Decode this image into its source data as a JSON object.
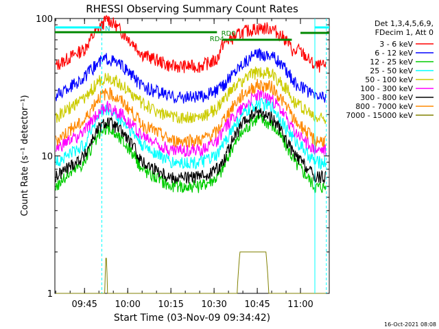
{
  "chart_data": {
    "type": "line",
    "title": "RHESSI Observing Summary Count Rates",
    "xlabel": "Start Time (03-Nov-09 09:34:42)",
    "ylabel": "Count Rate (s⁻¹ detector⁻¹)",
    "y_scale": "log",
    "ylim": [
      1,
      100
    ],
    "y_ticks": [
      {
        "value": 1,
        "label": "1"
      },
      {
        "value": 10,
        "label": "10"
      },
      {
        "value": 100,
        "label": "100"
      }
    ],
    "x_start": "09:34:42",
    "x_end": "11:10",
    "x_ticks": [
      "09:45",
      "10:00",
      "10:15",
      "10:30",
      "10:45",
      "11:00"
    ],
    "grid": false,
    "legend_position": "top-right",
    "legend_header": [
      "Det 1,3,4,5,6,9,",
      "FDecim 1, Att 0"
    ],
    "annotations": {
      "night_markers": [
        "09:51",
        "11:09"
      ],
      "saa_markers": [
        "11:05"
      ],
      "labels": [
        {
          "text": "N",
          "time": "09:53"
        },
        {
          "text": "RD4",
          "time": "10:31"
        },
        {
          "text": "RD0",
          "time": "10:35"
        }
      ]
    },
    "timestamp": "16-Oct-2021 08:08",
    "series": [
      {
        "name": "3 - 6 keV",
        "color": "#ff0000",
        "points": [
          [
            "09:35",
            45
          ],
          [
            "09:45",
            60
          ],
          [
            "09:50",
            85
          ],
          [
            "09:53",
            100
          ],
          [
            "09:58",
            80
          ],
          [
            "10:05",
            55
          ],
          [
            "10:15",
            45
          ],
          [
            "10:25",
            45
          ],
          [
            "10:31",
            50
          ],
          [
            "10:33",
            65
          ],
          [
            "10:40",
            80
          ],
          [
            "10:45",
            85
          ],
          [
            "10:50",
            85
          ],
          [
            "10:55",
            70
          ],
          [
            "10:58",
            55
          ],
          [
            "10:59",
            60
          ],
          [
            "11:05",
            45
          ],
          [
            "11:09",
            45
          ]
        ]
      },
      {
        "name": "6 - 12 keV",
        "color": "#0000ff",
        "points": [
          [
            "09:35",
            27
          ],
          [
            "09:45",
            37
          ],
          [
            "09:50",
            48
          ],
          [
            "09:53",
            52
          ],
          [
            "09:58",
            45
          ],
          [
            "10:05",
            32
          ],
          [
            "10:15",
            27
          ],
          [
            "10:25",
            27
          ],
          [
            "10:31",
            30
          ],
          [
            "10:33",
            32
          ],
          [
            "10:40",
            48
          ],
          [
            "10:45",
            55
          ],
          [
            "10:50",
            55
          ],
          [
            "10:55",
            42
          ],
          [
            "10:58",
            34
          ],
          [
            "11:05",
            27
          ],
          [
            "11:09",
            27
          ]
        ]
      },
      {
        "name": "12 - 25 keV",
        "color": "#00cc00",
        "points": [
          [
            "09:35",
            6
          ],
          [
            "09:45",
            9
          ],
          [
            "09:50",
            14
          ],
          [
            "09:53",
            16
          ],
          [
            "09:58",
            13
          ],
          [
            "10:05",
            8
          ],
          [
            "10:15",
            6
          ],
          [
            "10:25",
            6
          ],
          [
            "10:31",
            7
          ],
          [
            "10:33",
            8
          ],
          [
            "10:40",
            15
          ],
          [
            "10:45",
            19
          ],
          [
            "10:50",
            17
          ],
          [
            "10:55",
            12
          ],
          [
            "10:58",
            9
          ],
          [
            "11:05",
            6
          ],
          [
            "11:09",
            6
          ]
        ]
      },
      {
        "name": "25 - 50 keV",
        "color": "#00ffff",
        "points": [
          [
            "09:35",
            9
          ],
          [
            "09:45",
            12
          ],
          [
            "09:50",
            20
          ],
          [
            "09:53",
            22
          ],
          [
            "09:58",
            18
          ],
          [
            "10:05",
            12
          ],
          [
            "10:15",
            9
          ],
          [
            "10:25",
            9
          ],
          [
            "10:31",
            10
          ],
          [
            "10:33",
            12
          ],
          [
            "10:40",
            20
          ],
          [
            "10:45",
            24
          ],
          [
            "10:50",
            23
          ],
          [
            "10:55",
            16
          ],
          [
            "10:58",
            13
          ],
          [
            "11:05",
            9
          ],
          [
            "11:09",
            9
          ]
        ]
      },
      {
        "name": "50 - 100 keV",
        "color": "#cccc00",
        "points": [
          [
            "09:35",
            19
          ],
          [
            "09:45",
            26
          ],
          [
            "09:50",
            35
          ],
          [
            "09:53",
            38
          ],
          [
            "09:58",
            33
          ],
          [
            "10:05",
            24
          ],
          [
            "10:15",
            19
          ],
          [
            "10:25",
            19
          ],
          [
            "10:31",
            22
          ],
          [
            "10:33",
            25
          ],
          [
            "10:40",
            36
          ],
          [
            "10:45",
            41
          ],
          [
            "10:50",
            40
          ],
          [
            "10:55",
            31
          ],
          [
            "10:58",
            25
          ],
          [
            "11:05",
            19
          ],
          [
            "11:09",
            19
          ]
        ]
      },
      {
        "name": "100 - 300 keV",
        "color": "#ff00ff",
        "points": [
          [
            "09:35",
            11
          ],
          [
            "09:45",
            15
          ],
          [
            "09:50",
            21
          ],
          [
            "09:53",
            23
          ],
          [
            "09:58",
            20
          ],
          [
            "10:05",
            14
          ],
          [
            "10:15",
            11
          ],
          [
            "10:25",
            11
          ],
          [
            "10:31",
            13
          ],
          [
            "10:33",
            15
          ],
          [
            "10:40",
            23
          ],
          [
            "10:45",
            28
          ],
          [
            "10:50",
            26
          ],
          [
            "10:55",
            19
          ],
          [
            "10:58",
            15
          ],
          [
            "11:05",
            11
          ],
          [
            "11:09",
            11
          ]
        ]
      },
      {
        "name": "300 - 800 keV",
        "color": "#000000",
        "points": [
          [
            "09:35",
            7
          ],
          [
            "09:45",
            10
          ],
          [
            "09:50",
            16
          ],
          [
            "09:53",
            18
          ],
          [
            "09:58",
            15
          ],
          [
            "10:05",
            9
          ],
          [
            "10:15",
            7
          ],
          [
            "10:25",
            7
          ],
          [
            "10:31",
            8
          ],
          [
            "10:33",
            9
          ],
          [
            "10:40",
            17
          ],
          [
            "10:45",
            21
          ],
          [
            "10:50",
            19
          ],
          [
            "10:55",
            13
          ],
          [
            "10:58",
            10
          ],
          [
            "11:05",
            7
          ],
          [
            "11:09",
            7
          ]
        ]
      },
      {
        "name": "800 - 7000 keV",
        "color": "#ff8800",
        "points": [
          [
            "09:35",
            13
          ],
          [
            "09:45",
            18
          ],
          [
            "09:50",
            27
          ],
          [
            "09:53",
            29
          ],
          [
            "09:58",
            25
          ],
          [
            "10:05",
            17
          ],
          [
            "10:15",
            13
          ],
          [
            "10:25",
            13
          ],
          [
            "10:31",
            15
          ],
          [
            "10:33",
            18
          ],
          [
            "10:40",
            28
          ],
          [
            "10:45",
            33
          ],
          [
            "10:50",
            32
          ],
          [
            "10:55",
            23
          ],
          [
            "10:58",
            18
          ],
          [
            "11:05",
            13
          ],
          [
            "11:09",
            13
          ]
        ]
      },
      {
        "name": "7000 - 15000 keV",
        "color": "#808000",
        "points": [
          [
            "09:35",
            1
          ],
          [
            "09:52",
            1
          ],
          [
            "09:52.5",
            2
          ],
          [
            "09:53",
            1
          ],
          [
            "10:38",
            1
          ],
          [
            "10:39",
            2
          ],
          [
            "10:48",
            2
          ],
          [
            "10:49",
            1
          ],
          [
            "11:09",
            1
          ]
        ]
      }
    ]
  }
}
